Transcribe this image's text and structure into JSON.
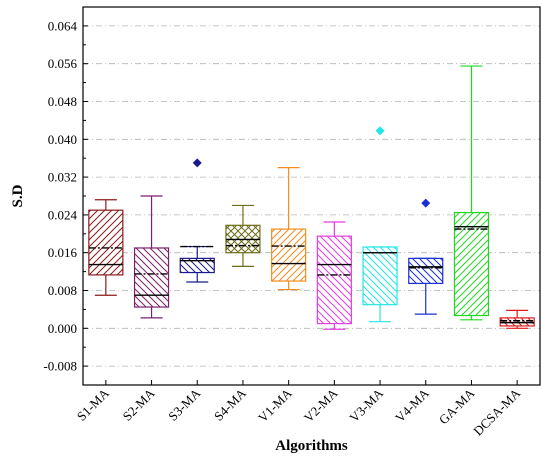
{
  "chart_data": {
    "type": "box",
    "title": "",
    "xlabel": "Algorithms",
    "ylabel": "S.D",
    "ylim": [
      -0.012,
      0.068
    ],
    "yticks": [
      "-0.008",
      "0.000",
      "0.008",
      "0.016",
      "0.024",
      "0.032",
      "0.040",
      "0.048",
      "0.056",
      "0.064"
    ],
    "ytick_values": [
      -0.008,
      0.0,
      0.008,
      0.016,
      0.024,
      0.032,
      0.04,
      0.048,
      0.056,
      0.064
    ],
    "grid": "horizontal dashed",
    "categories": [
      "S1-MA",
      "S2-MA",
      "S3-MA",
      "S4-MA",
      "V1-MA",
      "V2-MA",
      "V3-MA",
      "V4-MA",
      "GA-MA",
      "DCSA-MA"
    ],
    "boxes": [
      {
        "name": "S1-MA",
        "min": 0.007,
        "q1": 0.0113,
        "median": 0.0135,
        "mean": 0.017,
        "q3": 0.025,
        "max": 0.0272,
        "outliers": [],
        "color": "#8B1A1A",
        "pattern": "hatch-ne"
      },
      {
        "name": "S2-MA",
        "min": 0.0022,
        "q1": 0.0045,
        "median": 0.007,
        "mean": 0.0115,
        "q3": 0.017,
        "max": 0.028,
        "outliers": [],
        "color": "#7B1F6E",
        "pattern": "hatch-nw"
      },
      {
        "name": "S3-MA",
        "min": 0.0098,
        "q1": 0.0118,
        "median": 0.0143,
        "mean": 0.0173,
        "q3": 0.0148,
        "max": 0.0173,
        "outliers": [
          0.035
        ],
        "color": "#1A1A8C",
        "pattern": "hatch-nw"
      },
      {
        "name": "S4-MA",
        "min": 0.0131,
        "q1": 0.016,
        "median": 0.0188,
        "mean": 0.0175,
        "q3": 0.0218,
        "max": 0.026,
        "outliers": [],
        "color": "#6E6E1A",
        "pattern": "crosshatch"
      },
      {
        "name": "V1-MA",
        "min": 0.0082,
        "q1": 0.01,
        "median": 0.0137,
        "mean": 0.0174,
        "q3": 0.021,
        "max": 0.034,
        "outliers": [],
        "color": "#F28C1E",
        "pattern": "hatch-ne"
      },
      {
        "name": "V2-MA",
        "min": -0.0002,
        "q1": 0.001,
        "median": 0.0135,
        "mean": 0.0113,
        "q3": 0.0195,
        "max": 0.0225,
        "outliers": [],
        "color": "#E23CE2",
        "pattern": "hatch-nw"
      },
      {
        "name": "V3-MA",
        "min": 0.0014,
        "q1": 0.005,
        "median": 0.016,
        "mean": 0.016,
        "q3": 0.0172,
        "max": 0.0172,
        "outliers": [
          0.0418
        ],
        "color": "#22E6E6",
        "pattern": "hatch-nw"
      },
      {
        "name": "V4-MA",
        "min": 0.003,
        "q1": 0.0095,
        "median": 0.013,
        "mean": 0.0128,
        "q3": 0.0148,
        "max": 0.0148,
        "outliers": [
          0.0265
        ],
        "color": "#1A2FD6",
        "pattern": "hatch-nw"
      },
      {
        "name": "GA-MA",
        "min": 0.0018,
        "q1": 0.0027,
        "median": 0.0215,
        "mean": 0.021,
        "q3": 0.0245,
        "max": 0.0555,
        "outliers": [],
        "color": "#22D622",
        "pattern": "hatch-ne"
      },
      {
        "name": "DCSA-MA",
        "min": 0.0,
        "q1": 0.0005,
        "median": 0.0012,
        "mean": 0.0016,
        "q3": 0.0022,
        "max": 0.0038,
        "outliers": [],
        "color": "#E01B1B",
        "pattern": "hatch-nw"
      }
    ]
  }
}
